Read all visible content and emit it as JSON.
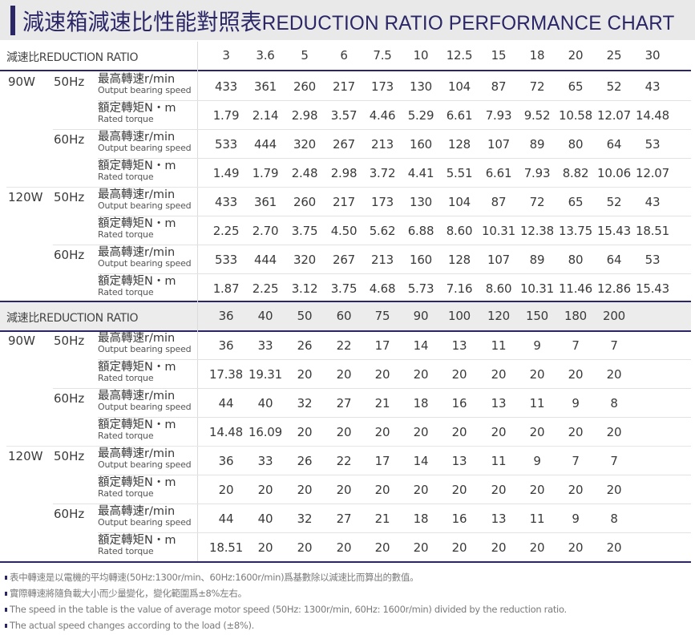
{
  "title": {
    "zh": "減速箱減速比性能對照表",
    "en": "REDUCTION RATIO PERFORMANCE CHART",
    "accent_color": "#2b2766"
  },
  "labels": {
    "ratio_header": "減速比REDUCTION RATIO",
    "speed_zh": "最高轉速r/min",
    "speed_en": "Output bearing speed",
    "torque_zh": "額定轉矩N・m",
    "torque_en": "Rated torque"
  },
  "table1": {
    "ratios": [
      "3",
      "3.6",
      "5",
      "6",
      "7.5",
      "10",
      "12.5",
      "15",
      "18",
      "20",
      "25",
      "30"
    ],
    "groups": [
      {
        "watt": "90W",
        "hz": "50Hz",
        "speed": [
          "433",
          "361",
          "260",
          "217",
          "173",
          "130",
          "104",
          "87",
          "72",
          "65",
          "52",
          "43"
        ],
        "torque": [
          "1.79",
          "2.14",
          "2.98",
          "3.57",
          "4.46",
          "5.29",
          "6.61",
          "7.93",
          "9.52",
          "10.58",
          "12.07",
          "14.48"
        ]
      },
      {
        "watt": "",
        "hz": "60Hz",
        "speed": [
          "533",
          "444",
          "320",
          "267",
          "213",
          "160",
          "128",
          "107",
          "89",
          "80",
          "64",
          "53"
        ],
        "torque": [
          "1.49",
          "1.79",
          "2.48",
          "2.98",
          "3.72",
          "4.41",
          "5.51",
          "6.61",
          "7.93",
          "8.82",
          "10.06",
          "12.07"
        ]
      },
      {
        "watt": "120W",
        "hz": "50Hz",
        "speed": [
          "433",
          "361",
          "260",
          "217",
          "173",
          "130",
          "104",
          "87",
          "72",
          "65",
          "52",
          "43"
        ],
        "torque": [
          "2.25",
          "2.70",
          "3.75",
          "4.50",
          "5.62",
          "6.88",
          "8.60",
          "10.31",
          "12.38",
          "13.75",
          "15.43",
          "18.51"
        ]
      },
      {
        "watt": "",
        "hz": "60Hz",
        "speed": [
          "533",
          "444",
          "320",
          "267",
          "213",
          "160",
          "128",
          "107",
          "89",
          "80",
          "64",
          "53"
        ],
        "torque": [
          "1.87",
          "2.25",
          "3.12",
          "3.75",
          "4.68",
          "5.73",
          "7.16",
          "8.60",
          "10.31",
          "11.46",
          "12.86",
          "15.43"
        ]
      }
    ]
  },
  "table2": {
    "ratios": [
      "36",
      "40",
      "50",
      "60",
      "75",
      "90",
      "100",
      "120",
      "150",
      "180",
      "200",
      ""
    ],
    "groups": [
      {
        "watt": "90W",
        "hz": "50Hz",
        "speed": [
          "36",
          "33",
          "26",
          "22",
          "17",
          "14",
          "13",
          "11",
          "9",
          "7",
          "7",
          ""
        ],
        "torque": [
          "17.38",
          "19.31",
          "20",
          "20",
          "20",
          "20",
          "20",
          "20",
          "20",
          "20",
          "20",
          ""
        ]
      },
      {
        "watt": "",
        "hz": "60Hz",
        "speed": [
          "44",
          "40",
          "32",
          "27",
          "21",
          "18",
          "16",
          "13",
          "11",
          "9",
          "8",
          ""
        ],
        "torque": [
          "14.48",
          "16.09",
          "20",
          "20",
          "20",
          "20",
          "20",
          "20",
          "20",
          "20",
          "20",
          ""
        ]
      },
      {
        "watt": "120W",
        "hz": "50Hz",
        "speed": [
          "36",
          "33",
          "26",
          "22",
          "17",
          "14",
          "13",
          "11",
          "9",
          "7",
          "7",
          ""
        ],
        "torque": [
          "20",
          "20",
          "20",
          "20",
          "20",
          "20",
          "20",
          "20",
          "20",
          "20",
          "20",
          ""
        ]
      },
      {
        "watt": "",
        "hz": "60Hz",
        "speed": [
          "44",
          "40",
          "32",
          "27",
          "21",
          "18",
          "16",
          "13",
          "11",
          "9",
          "8",
          ""
        ],
        "torque": [
          "18.51",
          "20",
          "20",
          "20",
          "20",
          "20",
          "20",
          "20",
          "20",
          "20",
          "20",
          ""
        ]
      }
    ]
  },
  "notes": [
    "表中轉速是以電機的平均轉速(50Hz:1300r/min、60Hz:1600r/min)爲基數除以減速比而算出的數值。",
    "實際轉速將隨負載大小而少量變化，變化範圍爲±8%左右。",
    "The speed in the table is the value of average motor speed (50Hz: 1300r/min, 60Hz: 1600r/min) divided by the reduction ratio.",
    "The actual speed changes according to the load (±8%)."
  ]
}
